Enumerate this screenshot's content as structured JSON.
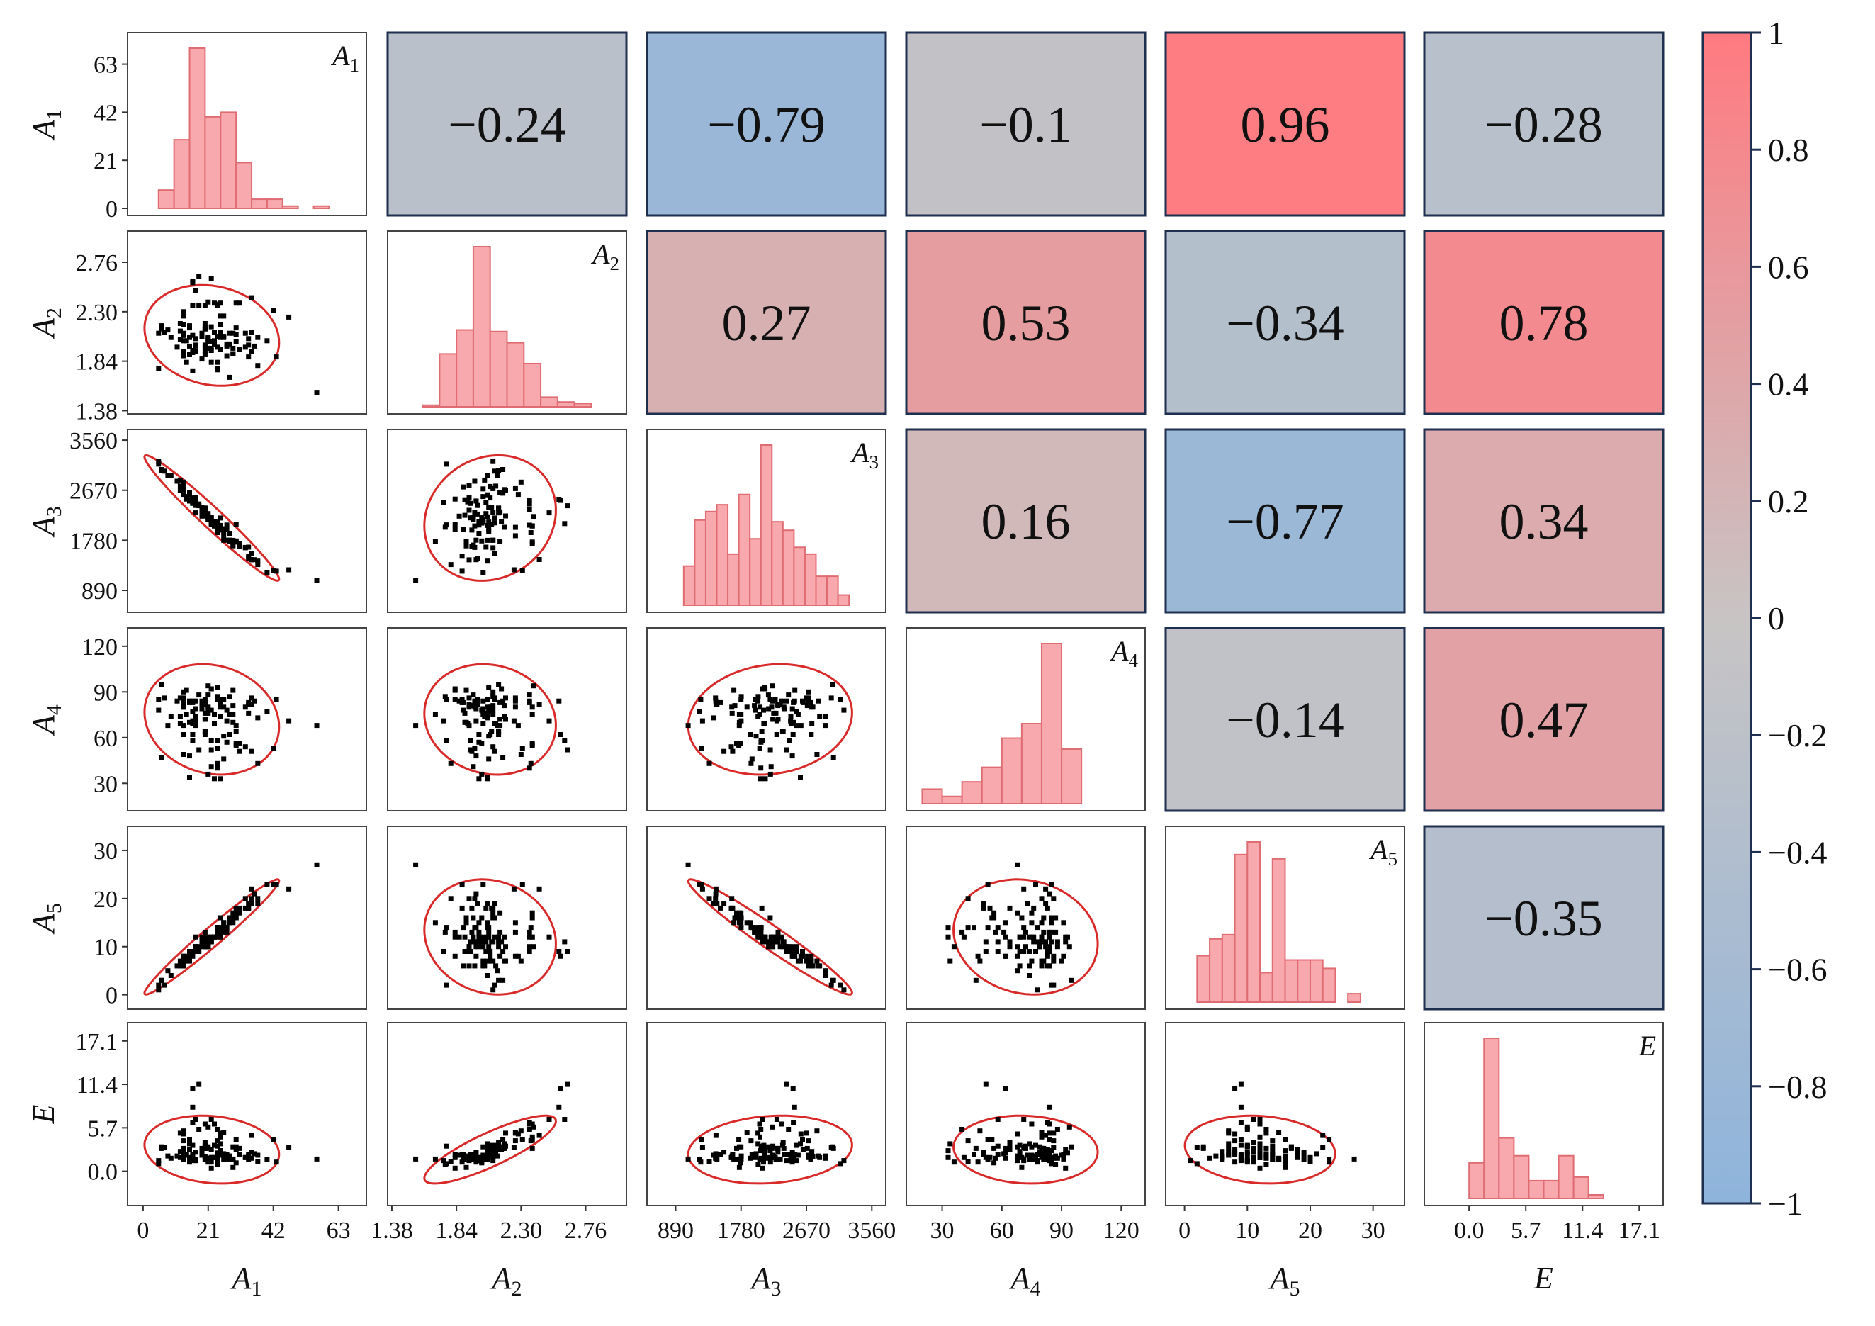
{
  "chart_data": {
    "type": "scatter-matrix",
    "title": "",
    "variables": [
      {
        "key": "A1",
        "base": "A",
        "sub": "1",
        "ticks": [
          "0",
          "21",
          "42",
          "63"
        ],
        "tickvals": [
          0,
          21,
          42,
          63
        ],
        "range": [
          -5,
          72
        ]
      },
      {
        "key": "A2",
        "base": "A",
        "sub": "2",
        "ticks": [
          "1.38",
          "1.84",
          "2.30",
          "2.76"
        ],
        "tickvals": [
          1.38,
          1.84,
          2.3,
          2.76
        ],
        "range": [
          1.35,
          3.05
        ]
      },
      {
        "key": "A3",
        "base": "A",
        "sub": "3",
        "ticks": [
          "890",
          "1780",
          "2670",
          "3560"
        ],
        "tickvals": [
          890,
          1780,
          2670,
          3560
        ],
        "range": [
          500,
          3750
        ]
      },
      {
        "key": "A4",
        "base": "A",
        "sub": "4",
        "ticks": [
          "30",
          "60",
          "90",
          "120"
        ],
        "tickvals": [
          30,
          60,
          90,
          120
        ],
        "range": [
          12,
          132
        ]
      },
      {
        "key": "A5",
        "base": "A",
        "sub": "5",
        "ticks": [
          "0",
          "10",
          "20",
          "30"
        ],
        "tickvals": [
          0,
          10,
          20,
          30
        ],
        "range": [
          -3,
          35
        ]
      },
      {
        "key": "E",
        "base": "E",
        "sub": "",
        "ticks": [
          "0.0",
          "5.7",
          "11.4",
          "17.1"
        ],
        "tickvals": [
          0,
          5.7,
          11.4,
          17.1
        ],
        "range": [
          -4.5,
          19.5
        ]
      }
    ],
    "correlations": [
      {
        "row": 0,
        "col": 1,
        "value": -0.24,
        "label": "−0.24"
      },
      {
        "row": 0,
        "col": 2,
        "value": -0.79,
        "label": "−0.79"
      },
      {
        "row": 0,
        "col": 3,
        "value": -0.1,
        "label": "−0.1"
      },
      {
        "row": 0,
        "col": 4,
        "value": 0.96,
        "label": "0.96"
      },
      {
        "row": 0,
        "col": 5,
        "value": -0.28,
        "label": "−0.28"
      },
      {
        "row": 1,
        "col": 2,
        "value": 0.27,
        "label": "0.27"
      },
      {
        "row": 1,
        "col": 3,
        "value": 0.53,
        "label": "0.53"
      },
      {
        "row": 1,
        "col": 4,
        "value": -0.34,
        "label": "−0.34"
      },
      {
        "row": 1,
        "col": 5,
        "value": 0.78,
        "label": "0.78"
      },
      {
        "row": 2,
        "col": 3,
        "value": 0.16,
        "label": "0.16"
      },
      {
        "row": 2,
        "col": 4,
        "value": -0.77,
        "label": "−0.77"
      },
      {
        "row": 2,
        "col": 5,
        "value": 0.34,
        "label": "0.34"
      },
      {
        "row": 3,
        "col": 4,
        "value": -0.14,
        "label": "−0.14"
      },
      {
        "row": 3,
        "col": 5,
        "value": 0.47,
        "label": "0.47"
      },
      {
        "row": 4,
        "col": 5,
        "value": -0.35,
        "label": "−0.35"
      }
    ],
    "histograms": [
      {
        "var": "A1",
        "bins": [
          [
            5,
            10,
            8
          ],
          [
            10,
            15,
            30
          ],
          [
            15,
            20,
            70
          ],
          [
            20,
            25,
            40
          ],
          [
            25,
            30,
            42
          ],
          [
            30,
            35,
            20
          ],
          [
            35,
            40,
            4
          ],
          [
            40,
            45,
            4
          ],
          [
            45,
            50,
            1
          ],
          [
            55,
            60,
            1
          ]
        ]
      },
      {
        "var": "A2",
        "bins": [
          [
            1.6,
            1.72,
            1
          ],
          [
            1.72,
            1.84,
            33
          ],
          [
            1.84,
            1.96,
            48
          ],
          [
            1.96,
            2.08,
            100
          ],
          [
            2.08,
            2.2,
            47
          ],
          [
            2.2,
            2.32,
            40
          ],
          [
            2.32,
            2.44,
            27
          ],
          [
            2.44,
            2.56,
            6
          ],
          [
            2.56,
            2.68,
            3
          ],
          [
            2.68,
            2.8,
            2
          ]
        ]
      },
      {
        "var": "A3",
        "bins": [
          [
            1000,
            1150,
            23
          ],
          [
            1150,
            1300,
            50
          ],
          [
            1300,
            1450,
            55
          ],
          [
            1450,
            1600,
            59
          ],
          [
            1600,
            1750,
            30
          ],
          [
            1750,
            1900,
            65
          ],
          [
            1900,
            2050,
            39
          ],
          [
            2050,
            2200,
            94
          ],
          [
            2200,
            2350,
            49
          ],
          [
            2350,
            2500,
            44
          ],
          [
            2500,
            2650,
            34
          ],
          [
            2650,
            2800,
            30
          ],
          [
            2800,
            2950,
            17
          ],
          [
            2950,
            3100,
            17
          ],
          [
            3100,
            3250,
            6
          ]
        ]
      },
      {
        "var": "A4",
        "bins": [
          [
            20,
            30,
            4
          ],
          [
            30,
            40,
            2
          ],
          [
            40,
            50,
            6
          ],
          [
            50,
            60,
            10
          ],
          [
            60,
            70,
            18
          ],
          [
            70,
            80,
            22
          ],
          [
            80,
            90,
            44
          ],
          [
            90,
            100,
            15
          ]
        ]
      },
      {
        "var": "A5",
        "bins": [
          [
            2,
            4,
            11
          ],
          [
            4,
            6,
            15
          ],
          [
            6,
            8,
            16
          ],
          [
            8,
            10,
            35
          ],
          [
            10,
            12,
            38
          ],
          [
            12,
            14,
            7
          ],
          [
            14,
            16,
            34
          ],
          [
            16,
            18,
            10
          ],
          [
            18,
            20,
            10
          ],
          [
            20,
            22,
            10
          ],
          [
            22,
            24,
            8
          ],
          [
            24,
            26,
            0
          ],
          [
            26,
            28,
            2
          ]
        ]
      },
      {
        "var": "E",
        "bins": [
          [
            0,
            1.5,
            10
          ],
          [
            1.5,
            3,
            45
          ],
          [
            3,
            4.5,
            17
          ],
          [
            4.5,
            6,
            12
          ],
          [
            6,
            7.5,
            5
          ],
          [
            7.5,
            9,
            5
          ],
          [
            9,
            10.5,
            12
          ],
          [
            10.5,
            12,
            6
          ],
          [
            12,
            13.5,
            1
          ]
        ]
      }
    ],
    "correlation_colorscale": {
      "range": [
        -1,
        1
      ],
      "ticks": [
        "1",
        "0.8",
        "0.6",
        "0.4",
        "0.2",
        "0",
        "−0.2",
        "−0.4",
        "−0.6",
        "−0.8",
        "−1"
      ],
      "tickvals": [
        1,
        0.8,
        0.6,
        0.4,
        0.2,
        0,
        -0.2,
        -0.4,
        -0.6,
        -0.8,
        -1
      ],
      "color_negative": "#8eb4dc",
      "color_zero": "#c8c4c4",
      "color_positive": "#ff7a80"
    },
    "colors": {
      "histogram_fill": "#f8a9ad",
      "histogram_edge": "#e06c73",
      "ellipse": "#d92a2a",
      "points": "#000000",
      "cell_border": "#1f2f4f"
    },
    "points": {
      "A1": [
        47,
        25,
        15,
        33,
        25,
        35,
        30,
        5,
        26,
        20,
        30,
        8,
        13,
        22,
        27,
        34,
        28,
        13,
        17,
        34,
        21,
        13,
        21,
        20,
        16,
        15,
        24,
        26,
        22,
        30,
        24,
        30,
        25,
        27,
        24,
        13,
        21,
        24,
        6,
        19,
        23,
        21,
        22,
        31,
        17,
        18,
        20,
        21,
        22,
        25,
        29,
        12,
        20,
        18,
        19,
        19,
        23,
        13,
        13,
        16,
        22,
        15,
        25,
        34,
        15,
        27,
        36,
        28,
        16,
        13,
        15,
        20,
        28,
        16,
        26,
        20,
        40,
        17,
        11,
        25,
        22,
        35,
        20,
        21,
        16,
        17,
        43,
        13,
        33,
        17,
        16,
        12,
        14,
        35,
        13,
        37,
        20,
        12,
        29,
        7,
        23,
        42,
        14,
        24,
        24,
        37,
        29,
        20,
        13,
        20,
        19,
        16,
        29,
        23,
        5,
        26,
        9,
        6,
        31,
        24,
        56
      ],
      "A2": [
        2.25,
        2.11,
        2.06,
        1.97,
        2.06,
        2.43,
        2.09,
        2.1,
        2.06,
        2.15,
        2.02,
        2.13,
        2.26,
        1.96,
        1.98,
        2.05,
        2.0,
        2.03,
        2.5,
        1.99,
        2.06,
        2.08,
        2.39,
        1.93,
        2.57,
        2.17,
        1.77,
        2.07,
        2.61,
        2.38,
        2.07,
        2.15,
        2.38,
        2.0,
        2.37,
        1.89,
        1.96,
        1.76,
        2.17,
        2.1,
        2.0,
        2.02,
        1.94,
        1.95,
        1.93,
        2.63,
        2.14,
        2.03,
        1.83,
        2.26,
        1.96,
        2.19,
        2.19,
        2.36,
        2.07,
        2.09,
        2.38,
        2.28,
        1.93,
        1.92,
        2.16,
        2.15,
        2.18,
        1.88,
        1.98,
        1.89,
        1.98,
        1.69,
        2.36,
        2.3,
        1.9,
        2.36,
        2.1,
        1.94,
        2.26,
        1.9,
        2.03,
        2.05,
        1.97,
        1.95,
        2.02,
        1.93,
        2.14,
        2.05,
        1.75,
        1.98,
        1.88,
        2.08,
        2.1,
        1.99,
        2.58,
        2.12,
        2.03,
        2.11,
        2.18,
        2.06,
        2.14,
        2.04,
        1.91,
        2.11,
        2.03,
        2.31,
        1.83,
        1.97,
        1.83,
        1.8,
        2.1,
        1.97,
        2.1,
        1.99,
        1.86,
        2.08,
        1.91,
        2.11,
        1.77,
        2.07,
        2.06,
        2.14,
        2.38,
        2.36,
        1.55
      ],
      "A3": [
        1256,
        2177,
        2588,
        1654,
        2045,
        1439,
        2063,
        3180,
        1780,
        2284,
        1768,
        2931,
        2700,
        2190,
        1782,
        1659,
        1905,
        2695,
        2269,
        1453,
        2197,
        2735,
        2203,
        2314,
        2509,
        2617,
        2055,
        1930,
        2077,
        1750,
        2105,
        1757,
        2038,
        2052,
        1917,
        2728,
        2153,
        2013,
        3038,
        2282,
        2111,
        2181,
        2179,
        1666,
        2534,
        2395,
        2346,
        2155,
        2068,
        2010,
        1696,
        2670,
        2213,
        2426,
        2369,
        2363,
        2033,
        2596,
        2758,
        2462,
        2107,
        2626,
        2011,
        1498,
        2478,
        1980,
        1436,
        1758,
        2492,
        2814,
        2500,
        2328,
        1784,
        2436,
        1862,
        2224,
        1212,
        2458,
        2831,
        1962,
        2086,
        1433,
        2267,
        2255,
        2454,
        2479,
        1232,
        2737,
        1648,
        2399,
        2489,
        2744,
        2558,
        1547,
        2682,
        1411,
        2354,
        2850,
        1758,
        3009,
        2101,
        1244,
        2513,
        2035,
        1980,
        1349,
        1780,
        2280,
        2700,
        2246,
        2209,
        2533,
        1682,
        2090,
        3134,
        1985,
        2932,
        3022,
        1720,
        2050,
        1060
      ],
      "A4": [
        71,
        85,
        34,
        80,
        33,
        82,
        64,
        78,
        85,
        72,
        56,
        68,
        86,
        41,
        71,
        76,
        62,
        84,
        71,
        82,
        80,
        62,
        94,
        82,
        84,
        84,
        58,
        46,
        58,
        55,
        93,
        68,
        80,
        57,
        43,
        83,
        88,
        87,
        47,
        81,
        33,
        36,
        52,
        51,
        68,
        52,
        64,
        79,
        92,
        84,
        81,
        86,
        72,
        88,
        79,
        80,
        75,
        68,
        80,
        69,
        92,
        83,
        74,
        83,
        48,
        78,
        84,
        75,
        83,
        49,
        70,
        84,
        87,
        58,
        80,
        76,
        77,
        74,
        84,
        81,
        78,
        86,
        62,
        76,
        71,
        79,
        85,
        80,
        54,
        84,
        62,
        69,
        75,
        51,
        81,
        73,
        64,
        74,
        70,
        86,
        69,
        53,
        91,
        53,
        85,
        43,
        75,
        82,
        90,
        85,
        84,
        77,
        91,
        69,
        85,
        61,
        74,
        95,
        56,
        40,
        68
      ],
      "A5": [
        22,
        16,
        7,
        20,
        14,
        22,
        18,
        1,
        15,
        13,
        16,
        5,
        8,
        12,
        14,
        18,
        15,
        6,
        12,
        19,
        12,
        8,
        10,
        10,
        9,
        9,
        14,
        14,
        11,
        16,
        12,
        17,
        12,
        13,
        14,
        6,
        11,
        13,
        3,
        11,
        12,
        10,
        11,
        18,
        10,
        9,
        10,
        10,
        12,
        13,
        16,
        7,
        10,
        10,
        10,
        11,
        12,
        8,
        6,
        9,
        11,
        8,
        12,
        18,
        8,
        14,
        21,
        15,
        9,
        7,
        9,
        12,
        16,
        9,
        15,
        12,
        23,
        9,
        6,
        13,
        11,
        20,
        12,
        11,
        9,
        10,
        23,
        7,
        18,
        10,
        8,
        6,
        7,
        19,
        7,
        19,
        11,
        6,
        16,
        2,
        12,
        23,
        8,
        14,
        13,
        20,
        17,
        11,
        7,
        11,
        12,
        9,
        15,
        12,
        2,
        13,
        4,
        3,
        17,
        13,
        27
      ],
      "E": [
        3.1,
        2.7,
        3.6,
        1.8,
        2.7,
        4.7,
        2.8,
        1.4,
        1.5,
        3.0,
        1.1,
        2.0,
        4.0,
        1.8,
        1.6,
        2.0,
        1.7,
        1.8,
        6.8,
        1.5,
        3.0,
        2.4,
        5.8,
        1.6,
        8.4,
        4.1,
        3.3,
        2.2,
        6.8,
        4.1,
        2.4,
        3.2,
        4.5,
        1.7,
        4.0,
        1.5,
        1.7,
        0.9,
        3.0,
        2.5,
        1.8,
        1.2,
        1.8,
        2.2,
        1.4,
        11.4,
        3.4,
        3.2,
        0.4,
        5.0,
        1.5,
        5.0,
        3.3,
        5.5,
        2.2,
        3.0,
        6.2,
        4.9,
        1.9,
        2.0,
        2.9,
        2.9,
        3.6,
        2.2,
        1.2,
        2.2,
        2.3,
        1.6,
        6.4,
        5.3,
        1.8,
        6.2,
        2.0,
        2.2,
        5.1,
        1.9,
        1.5,
        1.5,
        2.0,
        2.1,
        1.2,
        1.7,
        3.0,
        1.5,
        1.4,
        2.5,
        1.2,
        2.5,
        1.8,
        1.4,
        10.9,
        2.6,
        2.1,
        2.5,
        3.0,
        2.1,
        3.8,
        1.8,
        0.5,
        3.1,
        1.8,
        4.2,
        2.2,
        1.5,
        1.8,
        1.3,
        3.2,
        1.5,
        2.1,
        1.8,
        2.1,
        3.4,
        1.6,
        3.4,
        1.0,
        2.3,
        1.7,
        3.2,
        3.0,
        5.5,
        1.6
      ]
    }
  }
}
